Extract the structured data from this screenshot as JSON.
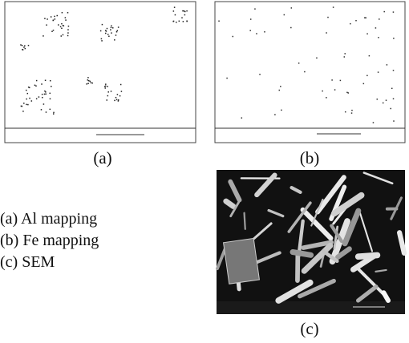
{
  "panels": [
    {
      "label": "(a)"
    },
    {
      "label": "(b)"
    },
    {
      "label": "(c)"
    }
  ],
  "legend": [
    "(a) Al mapping",
    "(b) Fe mapping",
    "(c) SEM"
  ]
}
